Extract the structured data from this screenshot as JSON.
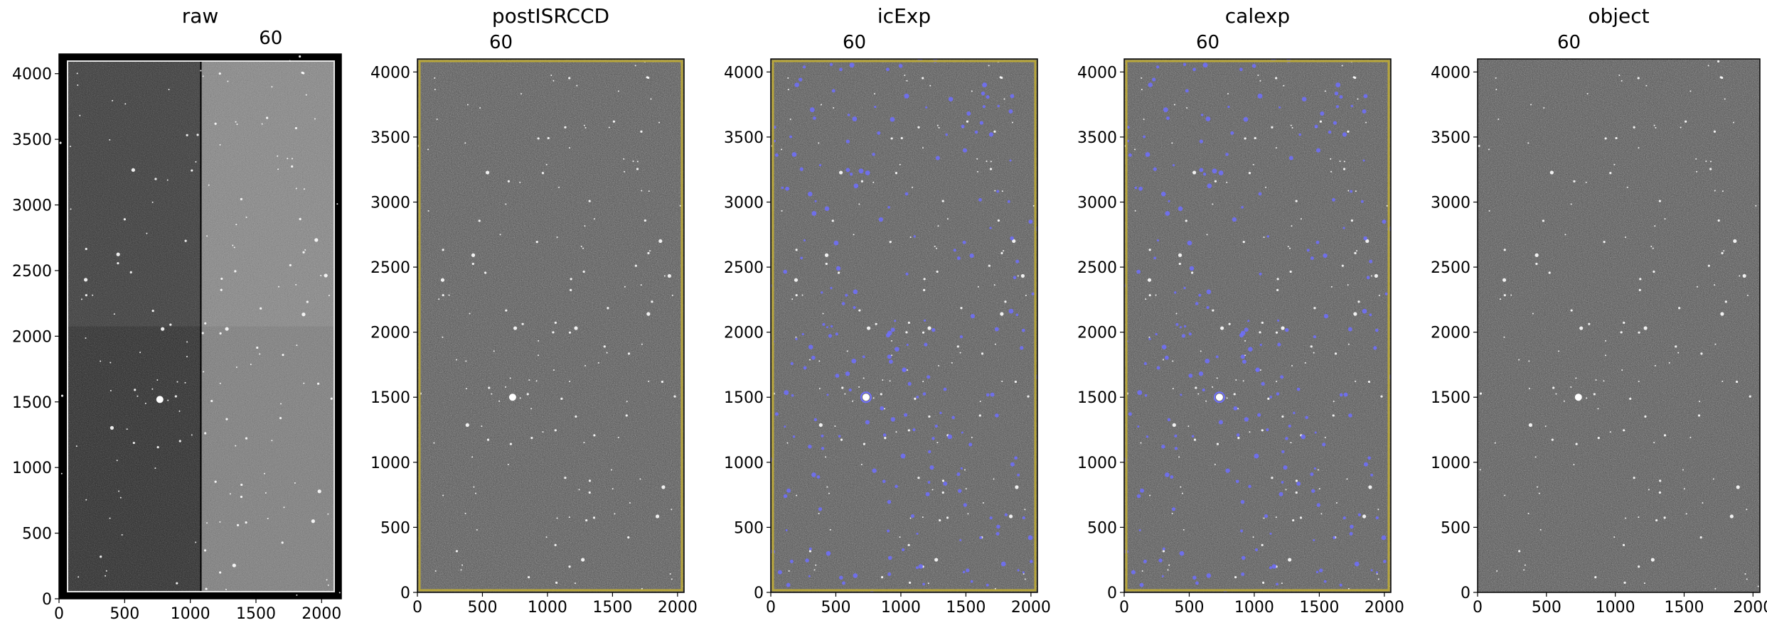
{
  "panels": [
    {
      "title": "raw",
      "subtitle": "60",
      "xticks": [
        "0",
        "500",
        "1000",
        "1500",
        "2000"
      ],
      "yticks": [
        "0",
        "500",
        "1000",
        "1500",
        "2000",
        "2500",
        "3000",
        "3500",
        "4000"
      ],
      "style": "raw-amplifiers"
    },
    {
      "title": "postISRCCD",
      "subtitle": "60",
      "xticks": [
        "0",
        "500",
        "1000",
        "1500",
        "2000"
      ],
      "yticks": [
        "0",
        "500",
        "1000",
        "1500",
        "2000",
        "2500",
        "3000",
        "3500",
        "4000"
      ],
      "style": "isr-yellow-border"
    },
    {
      "title": "icExp",
      "subtitle": "60",
      "xticks": [
        "0",
        "500",
        "1000",
        "1500",
        "2000"
      ],
      "yticks": [
        "0",
        "500",
        "1000",
        "1500",
        "2000",
        "2500",
        "3000",
        "3500",
        "4000"
      ],
      "style": "mask-blue-detections"
    },
    {
      "title": "calexp",
      "subtitle": "60",
      "xticks": [
        "0",
        "500",
        "1000",
        "1500",
        "2000"
      ],
      "yticks": [
        "0",
        "500",
        "1000",
        "1500",
        "2000",
        "2500",
        "3000",
        "3500",
        "4000"
      ],
      "style": "mask-blue-detections"
    },
    {
      "title": "object",
      "subtitle": "60",
      "xticks": [
        "0",
        "500",
        "1000",
        "1500",
        "2000"
      ],
      "yticks": [
        "0",
        "500",
        "1000",
        "1500",
        "2000",
        "2500",
        "3000",
        "3500",
        "4000"
      ],
      "style": "plain"
    }
  ],
  "colors": {
    "noise_gray": "#5a5a5a",
    "mask_blue": "#6f6fff",
    "border_yellow": "#b8a63a",
    "frame": "#000000"
  }
}
